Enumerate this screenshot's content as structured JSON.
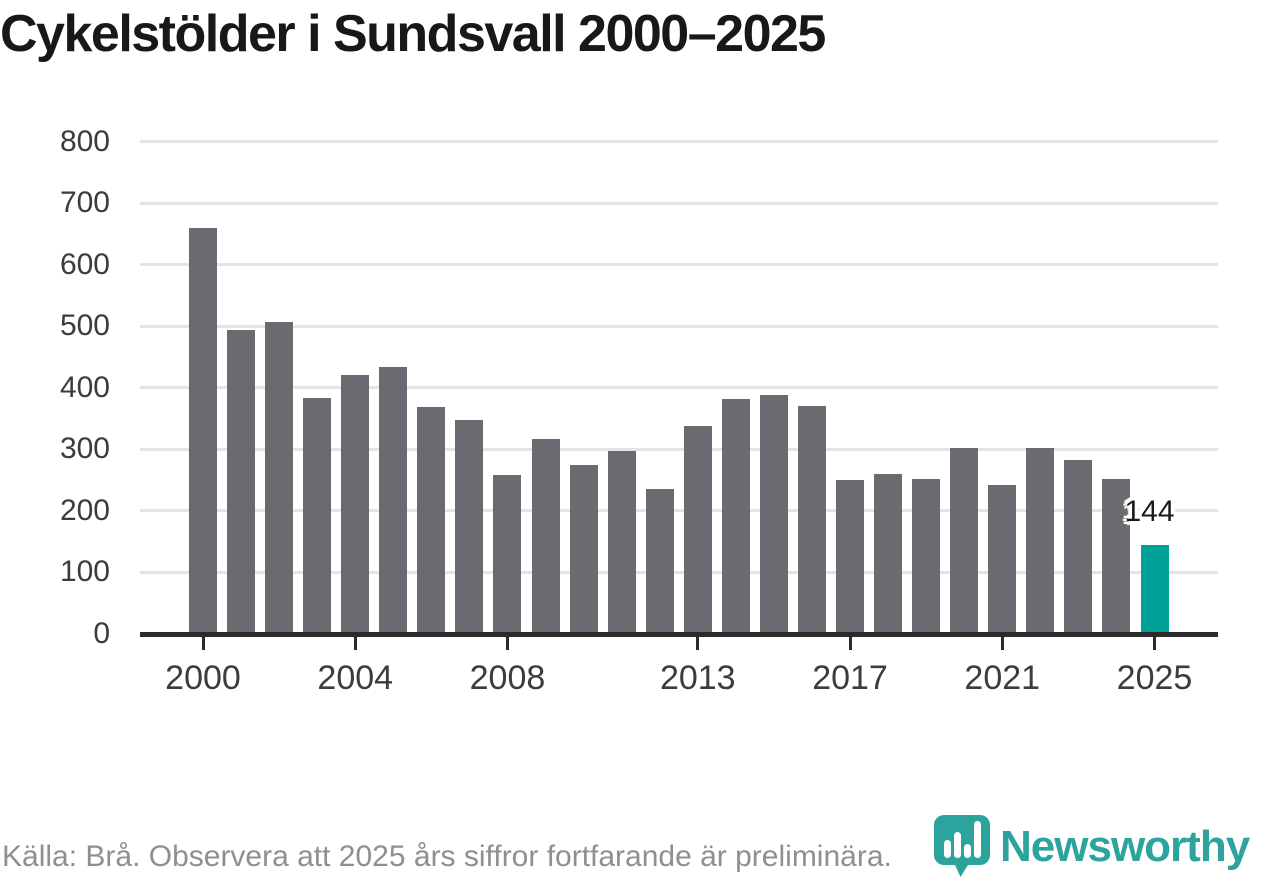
{
  "title": "Cykelstölder i Sundsvall 2000–2025",
  "chart_data": {
    "type": "bar",
    "title": "Cykelstölder i Sundsvall 2000–2025",
    "x": [
      2000,
      2001,
      2002,
      2003,
      2004,
      2005,
      2006,
      2007,
      2008,
      2009,
      2010,
      2011,
      2012,
      2013,
      2014,
      2015,
      2016,
      2017,
      2018,
      2019,
      2020,
      2021,
      2022,
      2023,
      2024,
      2025
    ],
    "values": [
      659,
      494,
      507,
      384,
      420,
      434,
      369,
      347,
      259,
      316,
      274,
      297,
      235,
      338,
      381,
      389,
      371,
      250,
      260,
      252,
      302,
      242,
      302,
      283,
      252,
      144
    ],
    "highlight": {
      "year": 2025,
      "label": "144"
    },
    "ylim": [
      0,
      800
    ],
    "yticks": [
      0,
      100,
      200,
      300,
      400,
      500,
      600,
      700,
      800
    ],
    "xtick_years": [
      2000,
      2004,
      2008,
      2013,
      2017,
      2021,
      2025
    ],
    "xtick_labels": [
      "2000",
      "2004",
      "2008",
      "2013",
      "2017",
      "2021",
      "2025"
    ],
    "grid": "horizontal",
    "legend": "none",
    "xlabel": "",
    "ylabel": ""
  },
  "colors": {
    "bar": "#6b6a70",
    "highlight": "#00a298",
    "grid": "#e4e4e4",
    "axis": "#2b2b2b",
    "tick_label": "#3c3c3c",
    "title": "#181818",
    "value_label": "#1a1a1a",
    "source": "#8f8f8f",
    "brand": "#2ca49d"
  },
  "footer": {
    "source_text": "Källa: Brå. Observera att 2025 års siffror fortfarande är preliminära.",
    "brand": "Newsworthy",
    "logo_icon": "pin-with-bar-chart"
  }
}
